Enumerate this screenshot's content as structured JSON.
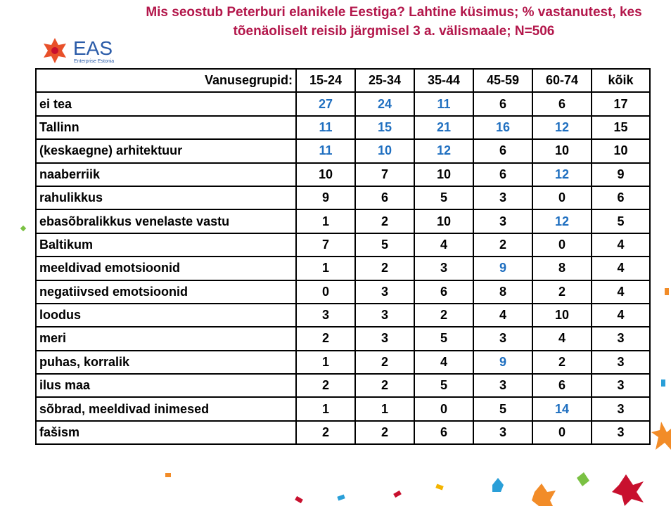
{
  "header": {
    "title": "Mis seostub Peterburi elanikele Eestiga? Lahtine küsimus; % vastanutest, kes tõenäoliselt reisib järgmisel 3 a. välismaale; N=506",
    "logo": {
      "name": "EAS",
      "subtitle": "Enterprise Estonia"
    }
  },
  "table": {
    "highlight_color": "#1f6fc0",
    "header": [
      "Vanusegrupid:",
      "15-24",
      "25-34",
      "35-44",
      "45-59",
      "60-74",
      "kõik"
    ],
    "rows": [
      {
        "label": "ei tea",
        "cells": [
          27,
          24,
          11,
          6,
          6,
          17
        ],
        "highlighted": [
          0,
          1,
          2
        ]
      },
      {
        "label": "Tallinn",
        "cells": [
          11,
          15,
          21,
          16,
          12,
          15
        ],
        "highlighted": [
          0,
          1,
          2,
          3,
          4
        ]
      },
      {
        "label": "(keskaegne) arhitektuur",
        "cells": [
          11,
          10,
          12,
          6,
          10,
          10
        ],
        "highlighted": [
          0,
          1,
          2
        ]
      },
      {
        "label": "naaberriik",
        "cells": [
          10,
          7,
          10,
          6,
          12,
          9
        ],
        "highlighted": [
          4
        ]
      },
      {
        "label": "rahulikkus",
        "cells": [
          9,
          6,
          5,
          3,
          0,
          6
        ],
        "highlighted": []
      },
      {
        "label": "ebasõbralikkus venelaste vastu",
        "cells": [
          1,
          2,
          10,
          3,
          12,
          5
        ],
        "highlighted": [
          4
        ]
      },
      {
        "label": "Baltikum",
        "cells": [
          7,
          5,
          4,
          2,
          0,
          4
        ],
        "highlighted": []
      },
      {
        "label": "meeldivad emotsioonid",
        "cells": [
          1,
          2,
          3,
          9,
          8,
          4
        ],
        "highlighted": [
          3
        ]
      },
      {
        "label": "negatiivsed emotsioonid",
        "cells": [
          0,
          3,
          6,
          8,
          2,
          4
        ],
        "highlighted": []
      },
      {
        "label": "loodus",
        "cells": [
          3,
          3,
          2,
          4,
          10,
          4
        ],
        "highlighted": []
      },
      {
        "label": "meri",
        "cells": [
          2,
          3,
          5,
          3,
          4,
          3
        ],
        "highlighted": []
      },
      {
        "label": "puhas, korralik",
        "cells": [
          1,
          2,
          4,
          9,
          2,
          3
        ],
        "highlighted": [
          3
        ]
      },
      {
        "label": "ilus maa",
        "cells": [
          2,
          2,
          5,
          3,
          6,
          3
        ],
        "highlighted": []
      },
      {
        "label": "sõbrad, meeldivad inimesed",
        "cells": [
          1,
          1,
          0,
          5,
          14,
          3
        ],
        "highlighted": [
          4
        ]
      },
      {
        "label": "fašism",
        "cells": [
          2,
          2,
          6,
          3,
          0,
          3
        ],
        "highlighted": []
      }
    ]
  }
}
